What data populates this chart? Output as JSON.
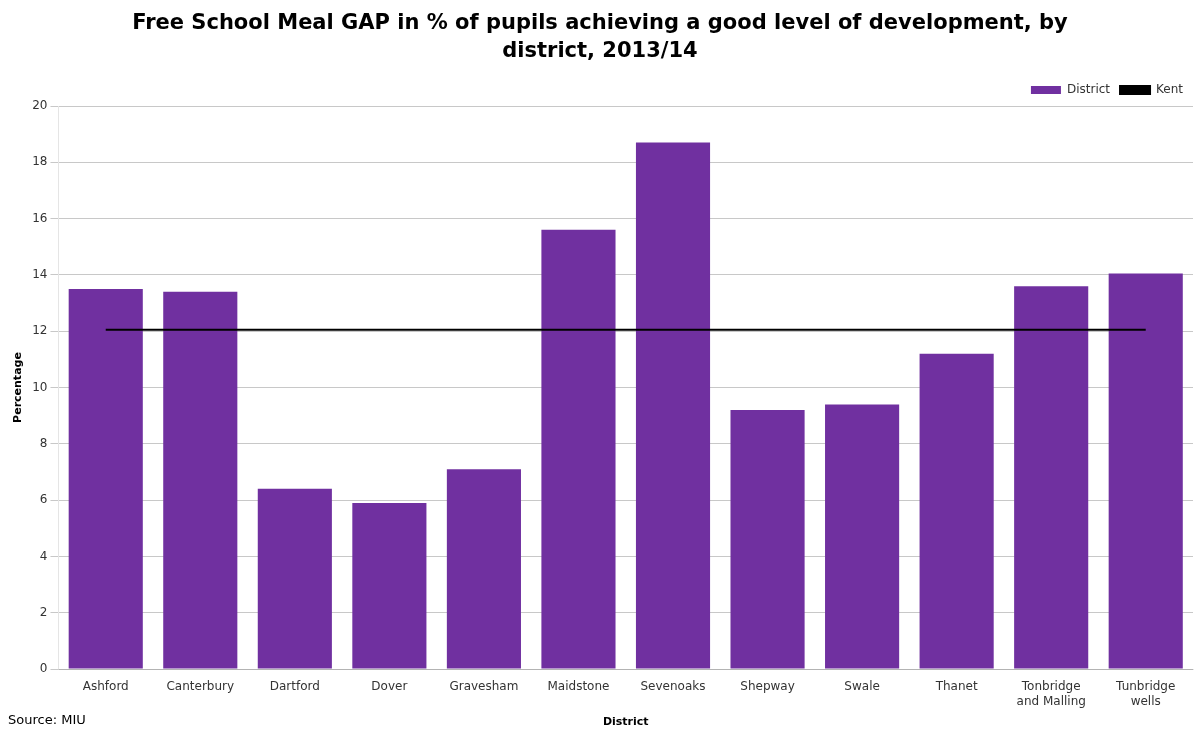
{
  "chart_data": {
    "type": "bar",
    "title": "Free School Meal GAP in % of pupils achieving a good level of development, by district, 2013/14",
    "xlabel": "District",
    "ylabel": "Percentage",
    "categories": [
      "Ashford",
      "Canterbury",
      "Dartford",
      "Dover",
      "Gravesham",
      "Maidstone",
      "Sevenoaks",
      "Shepway",
      "Swale",
      "Thanet",
      "Tonbridge and Malling",
      "Tunbridge wells"
    ],
    "series": [
      {
        "name": "District",
        "color": "#7030a0",
        "values": [
          13.5,
          13.4,
          6.4,
          5.9,
          7.1,
          15.6,
          18.7,
          9.2,
          9.4,
          11.2,
          13.6,
          14.05
        ]
      },
      {
        "name": "Kent",
        "type": "line",
        "color": "#000000",
        "values": [
          12.05,
          12.05,
          12.05,
          12.05,
          12.05,
          12.05,
          12.05,
          12.05,
          12.05,
          12.05,
          12.05,
          12.05
        ]
      }
    ],
    "ylim": [
      0,
      20
    ],
    "yticks": [
      0,
      2,
      4,
      6,
      8,
      10,
      12,
      14,
      16,
      18,
      20
    ],
    "grid": "y",
    "legend": "top right",
    "marker": "none",
    "annotations": [
      "Source: MIU"
    ]
  }
}
